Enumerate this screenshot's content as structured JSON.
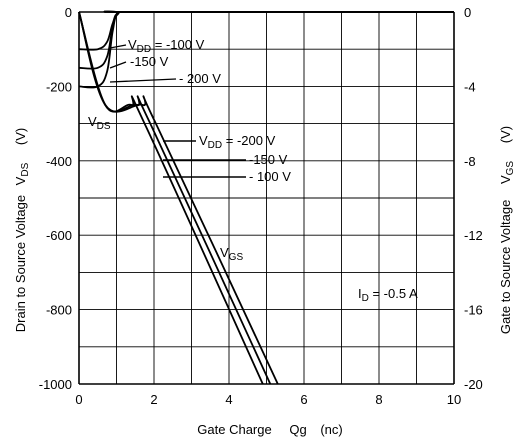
{
  "chart_data": {
    "type": "line",
    "title": "",
    "xlabel": {
      "text": "Gate Charge",
      "symbol": "Qg",
      "unit": "(nc)"
    },
    "ylabel_left": {
      "text": "Drain to Source Voltage",
      "symbol_main": "V",
      "symbol_sub": "DS",
      "unit": "(V)"
    },
    "ylabel_right": {
      "text": "Gate to Source Voltage",
      "symbol_main": "V",
      "symbol_sub": "GS",
      "unit": "(V)"
    },
    "xlim": [
      0,
      10
    ],
    "ylim_left": [
      -1000,
      0
    ],
    "ylim_right": [
      -20,
      0
    ],
    "x_ticks": [
      0,
      2,
      4,
      6,
      8,
      10
    ],
    "y_left_ticks": [
      0,
      -200,
      -400,
      -600,
      -800,
      -1000
    ],
    "y_right_ticks": [
      0,
      -4,
      -8,
      -12,
      -16,
      -20
    ],
    "grid": true,
    "condition": {
      "main": "I",
      "sub": "D",
      "value": " = -0.5 A"
    },
    "vds_label": {
      "main": "V",
      "sub": "DS"
    },
    "vgs_label": {
      "main": "V",
      "sub": "GS"
    },
    "vds_legend": [
      {
        "prefix": "V",
        "sub": "DD",
        "value": " = -100 V"
      },
      {
        "prefix": "",
        "sub": "",
        "value": "-150 V"
      },
      {
        "prefix": "",
        "sub": "",
        "value": "- 200 V"
      }
    ],
    "vgs_legend": [
      {
        "prefix": "V",
        "sub": "DD",
        "value": " = -200 V"
      },
      {
        "prefix": "",
        "sub": "",
        "value": "-150 V"
      },
      {
        "prefix": "",
        "sub": "",
        "value": "- 100 V"
      }
    ],
    "series": [
      {
        "axis": "left",
        "group": "VDS",
        "vdd": -100,
        "x": [
          0,
          0.5,
          0.75,
          0.9,
          1.05,
          1.5,
          10
        ],
        "y": [
          -100,
          -100,
          -80,
          -30,
          -2,
          0,
          0
        ]
      },
      {
        "axis": "left",
        "group": "VDS",
        "vdd": -150,
        "x": [
          0,
          0.5,
          0.75,
          0.9,
          1.05,
          1.5,
          10
        ],
        "y": [
          -150,
          -150,
          -120,
          -40,
          -3,
          0,
          0
        ]
      },
      {
        "axis": "left",
        "group": "VDS",
        "vdd": -200,
        "x": [
          0,
          0.5,
          0.75,
          0.9,
          1.05,
          1.5,
          10
        ],
        "y": [
          -200,
          -200,
          -160,
          -50,
          -4,
          0,
          0
        ]
      },
      {
        "axis": "right",
        "group": "VGS",
        "vdd": -200,
        "x": [
          0,
          0.7,
          1.4,
          1.75,
          4.9
        ],
        "y": [
          0,
          -5,
          -5,
          -6,
          -20
        ]
      },
      {
        "axis": "right",
        "group": "VGS",
        "vdd": -150,
        "x": [
          0,
          0.7,
          1.55,
          1.9,
          5.1
        ],
        "y": [
          0,
          -5,
          -5,
          -6,
          -20
        ]
      },
      {
        "axis": "right",
        "group": "VGS",
        "vdd": -100,
        "x": [
          0,
          0.7,
          1.7,
          2.05,
          5.3
        ],
        "y": [
          0,
          -5,
          -5,
          -6,
          -20
        ]
      }
    ]
  }
}
